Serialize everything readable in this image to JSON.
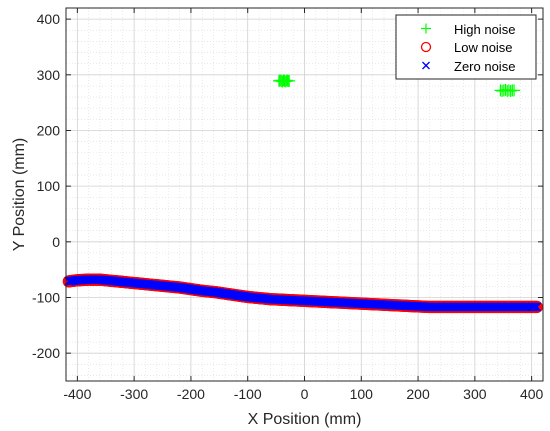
{
  "chart_data": {
    "type": "scatter",
    "title": "",
    "xlabel": "X Position (mm)",
    "ylabel": "Y Position (mm)",
    "xlim": [
      -420,
      420
    ],
    "ylim": [
      -250,
      420
    ],
    "xticks": [
      -400,
      -300,
      -200,
      -100,
      0,
      100,
      200,
      300,
      400
    ],
    "yticks": [
      -200,
      -100,
      0,
      100,
      200,
      300,
      400
    ],
    "grid": true,
    "minor_grid": true,
    "legend_position": "top-right",
    "series": [
      {
        "name": "High noise",
        "marker": "plus",
        "color": "#00ff00",
        "x": [
          -45,
          -43,
          -41,
          -39,
          -37,
          -35,
          -33,
          -31,
          -29,
          -27,
          345,
          348,
          351,
          354,
          357,
          360,
          363,
          366,
          369
        ],
        "y": [
          289,
          290,
          289,
          288,
          290,
          289,
          288,
          290,
          289,
          289,
          272,
          271,
          272,
          273,
          271,
          272,
          271,
          272,
          272
        ]
      },
      {
        "name": "Low noise",
        "marker": "circle",
        "color": "#ff0000",
        "x": [
          -415,
          -400,
          -380,
          -360,
          -340,
          -320,
          -300,
          -280,
          -260,
          -240,
          -220,
          -200,
          -180,
          -160,
          -140,
          -120,
          -100,
          -80,
          -60,
          -40,
          -20,
          0,
          20,
          40,
          60,
          80,
          100,
          120,
          140,
          160,
          180,
          200,
          220,
          240,
          260,
          280,
          300,
          320,
          340,
          360,
          380,
          400,
          410
        ],
        "y": [
          -71,
          -69,
          -68,
          -68,
          -70,
          -72,
          -74,
          -76,
          -78,
          -80,
          -82,
          -85,
          -88,
          -90,
          -93,
          -96,
          -99,
          -101,
          -103,
          -104,
          -105,
          -106,
          -107,
          -108,
          -109,
          -110,
          -111,
          -112,
          -113,
          -114,
          -115,
          -116,
          -117,
          -117,
          -117,
          -117,
          -117,
          -117,
          -117,
          -117,
          -117,
          -117,
          -117
        ]
      },
      {
        "name": "Zero noise",
        "marker": "x",
        "color": "#0000ff",
        "x": [
          -415,
          -400,
          -380,
          -360,
          -340,
          -320,
          -300,
          -280,
          -260,
          -240,
          -220,
          -200,
          -180,
          -160,
          -140,
          -120,
          -100,
          -80,
          -60,
          -40,
          -20,
          0,
          20,
          40,
          60,
          80,
          100,
          120,
          140,
          160,
          180,
          200,
          220,
          240,
          260,
          280,
          300,
          320,
          340,
          360,
          380,
          400,
          410
        ],
        "y": [
          -71,
          -69,
          -68,
          -68,
          -70,
          -72,
          -74,
          -76,
          -78,
          -80,
          -82,
          -85,
          -88,
          -90,
          -93,
          -96,
          -99,
          -101,
          -103,
          -104,
          -105,
          -106,
          -107,
          -108,
          -109,
          -110,
          -111,
          -112,
          -113,
          -114,
          -115,
          -116,
          -117,
          -117,
          -117,
          -117,
          -117,
          -117,
          -117,
          -117,
          -117,
          -117,
          -117
        ]
      }
    ]
  }
}
